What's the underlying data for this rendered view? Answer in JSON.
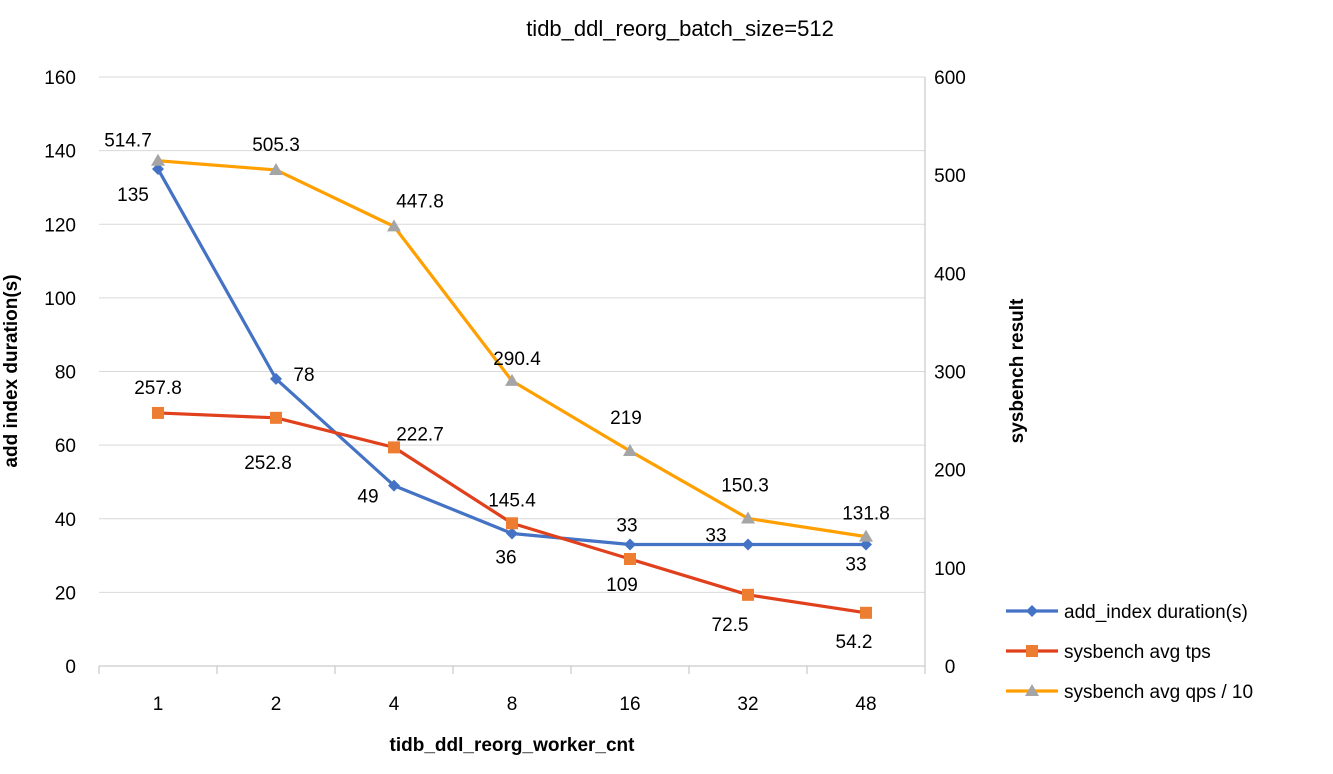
{
  "chart_data": {
    "type": "line",
    "title": "tidb_ddl_reorg_batch_size=512",
    "xlabel": "tidb_ddl_reorg_worker_cnt",
    "ylabel": "add index duration(s)",
    "y2label": "sysbench result",
    "categories": [
      "1",
      "2",
      "4",
      "8",
      "16",
      "32",
      "48"
    ],
    "ylim": [
      0,
      160
    ],
    "yticks": [
      0,
      20,
      40,
      60,
      80,
      100,
      120,
      140,
      160
    ],
    "y2lim": [
      0,
      600
    ],
    "y2ticks": [
      0,
      100,
      200,
      300,
      400,
      500,
      600
    ],
    "grid": true,
    "legend_position": "bottom-right",
    "series": [
      {
        "name": "add_index duration(s)",
        "axis": "left",
        "color": "#4472C4",
        "marker": "diamond",
        "marker_color": "#4472C4",
        "values": [
          135,
          78,
          49,
          36,
          33,
          33,
          33
        ],
        "labels": [
          "135",
          "78",
          "49",
          "36",
          "33",
          "33",
          "33"
        ]
      },
      {
        "name": "sysbench avg tps",
        "axis": "right",
        "color": "#E0401B",
        "marker": "square",
        "marker_color": "#ED7D31",
        "values": [
          257.8,
          252.8,
          222.7,
          145.4,
          109,
          72.5,
          54.2
        ],
        "labels": [
          "257.8",
          "252.8",
          "222.7",
          "145.4",
          "109",
          "72.5",
          "54.2"
        ]
      },
      {
        "name": "sysbench avg qps / 10",
        "axis": "right",
        "color": "#FFA000",
        "marker": "triangle",
        "marker_color": "#A5A5A5",
        "values": [
          514.7,
          505.3,
          447.8,
          290.4,
          219,
          150.3,
          131.8
        ],
        "labels": [
          "514.7",
          "505.3",
          "447.8",
          "290.4",
          "219",
          "150.3",
          "131.8"
        ]
      }
    ]
  }
}
